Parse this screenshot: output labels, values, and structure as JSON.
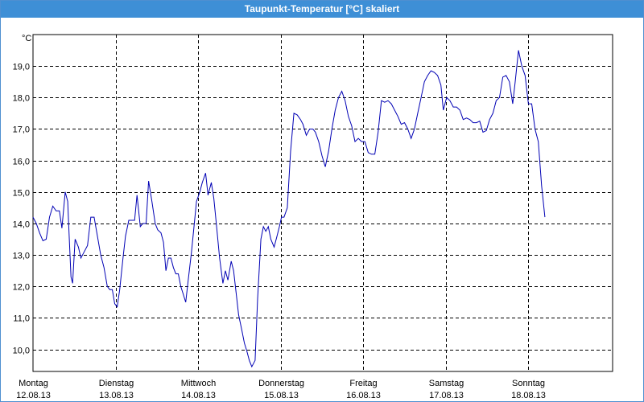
{
  "window": {
    "title": "Taupunkt-Temperatur [°C] skaliert"
  },
  "colors": {
    "titlebar": "#3e8fd6",
    "line": "#0000b4",
    "grid": "#000000"
  },
  "chart_data": {
    "type": "line",
    "title": "Taupunkt-Temperatur [°C] skaliert",
    "ylabel": "°C",
    "xlabel": "",
    "ylim": [
      9.3,
      20.0
    ],
    "y_ticks": [
      "10,0",
      "11,0",
      "12,0",
      "13,0",
      "14,0",
      "15,0",
      "16,0",
      "17,0",
      "18,0",
      "19,0"
    ],
    "y_tick_values": [
      10,
      11,
      12,
      13,
      14,
      15,
      16,
      17,
      18,
      19
    ],
    "xlim": [
      0,
      7.0
    ],
    "x_ticks": [
      {
        "x": 0,
        "day": "Montag",
        "date": "12.08.13"
      },
      {
        "x": 1,
        "day": "Dienstag",
        "date": "13.08.13"
      },
      {
        "x": 2,
        "day": "Mittwoch",
        "date": "14.08.13"
      },
      {
        "x": 3,
        "day": "Donnerstag",
        "date": "15.08.13"
      },
      {
        "x": 4,
        "day": "Freitag",
        "date": "16.08.13"
      },
      {
        "x": 5,
        "day": "Samstag",
        "date": "17.08.13"
      },
      {
        "x": 6,
        "day": "Sonntag",
        "date": "18.08.13"
      }
    ],
    "grid": true,
    "series": [
      {
        "points": [
          [
            0.0,
            14.2
          ],
          [
            0.04,
            14.0
          ],
          [
            0.08,
            13.7
          ],
          [
            0.12,
            13.45
          ],
          [
            0.16,
            13.5
          ],
          [
            0.2,
            14.2
          ],
          [
            0.24,
            14.55
          ],
          [
            0.28,
            14.4
          ],
          [
            0.32,
            14.4
          ],
          [
            0.35,
            13.85
          ],
          [
            0.39,
            15.0
          ],
          [
            0.42,
            14.7
          ],
          [
            0.44,
            13.5
          ],
          [
            0.46,
            12.3
          ],
          [
            0.48,
            12.1
          ],
          [
            0.51,
            13.5
          ],
          [
            0.55,
            13.25
          ],
          [
            0.58,
            12.9
          ],
          [
            0.62,
            13.1
          ],
          [
            0.66,
            13.3
          ],
          [
            0.7,
            14.2
          ],
          [
            0.74,
            14.2
          ],
          [
            0.78,
            13.6
          ],
          [
            0.82,
            13.0
          ],
          [
            0.86,
            12.6
          ],
          [
            0.9,
            12.0
          ],
          [
            0.93,
            11.9
          ],
          [
            0.96,
            11.9
          ],
          [
            0.99,
            11.45
          ],
          [
            1.02,
            11.35
          ],
          [
            1.05,
            11.9
          ],
          [
            1.09,
            12.9
          ],
          [
            1.12,
            13.6
          ],
          [
            1.16,
            14.1
          ],
          [
            1.19,
            14.1
          ],
          [
            1.23,
            14.1
          ],
          [
            1.26,
            14.9
          ],
          [
            1.3,
            13.9
          ],
          [
            1.33,
            14.0
          ],
          [
            1.37,
            14.0
          ],
          [
            1.4,
            15.35
          ],
          [
            1.44,
            14.7
          ],
          [
            1.48,
            14.0
          ],
          [
            1.51,
            13.8
          ],
          [
            1.55,
            13.7
          ],
          [
            1.58,
            13.4
          ],
          [
            1.61,
            12.5
          ],
          [
            1.64,
            12.9
          ],
          [
            1.67,
            12.9
          ],
          [
            1.7,
            12.6
          ],
          [
            1.73,
            12.4
          ],
          [
            1.76,
            12.4
          ],
          [
            1.79,
            12.0
          ],
          [
            1.82,
            11.75
          ],
          [
            1.85,
            11.5
          ],
          [
            1.88,
            12.2
          ],
          [
            1.92,
            13.1
          ],
          [
            1.95,
            13.9
          ],
          [
            1.98,
            14.7
          ],
          [
            2.02,
            15.0
          ],
          [
            2.05,
            15.3
          ],
          [
            2.09,
            15.6
          ],
          [
            2.12,
            14.9
          ],
          [
            2.16,
            15.3
          ],
          [
            2.19,
            14.8
          ],
          [
            2.22,
            14.0
          ],
          [
            2.26,
            12.9
          ],
          [
            2.3,
            12.1
          ],
          [
            2.33,
            12.5
          ],
          [
            2.36,
            12.2
          ],
          [
            2.4,
            12.8
          ],
          [
            2.43,
            12.5
          ],
          [
            2.46,
            11.8
          ],
          [
            2.49,
            11.1
          ],
          [
            2.53,
            10.6
          ],
          [
            2.56,
            10.2
          ],
          [
            2.59,
            9.95
          ],
          [
            2.62,
            9.65
          ],
          [
            2.65,
            9.45
          ],
          [
            2.69,
            9.65
          ],
          [
            2.72,
            11.6
          ],
          [
            2.76,
            13.5
          ],
          [
            2.79,
            13.9
          ],
          [
            2.82,
            13.75
          ],
          [
            2.85,
            13.9
          ],
          [
            2.88,
            13.5
          ],
          [
            2.92,
            13.25
          ],
          [
            2.95,
            13.55
          ],
          [
            2.98,
            13.85
          ],
          [
            3.01,
            14.2
          ],
          [
            3.04,
            14.2
          ],
          [
            3.08,
            14.5
          ],
          [
            3.12,
            16.3
          ],
          [
            3.16,
            17.5
          ],
          [
            3.2,
            17.45
          ],
          [
            3.24,
            17.3
          ],
          [
            3.27,
            17.15
          ],
          [
            3.31,
            16.8
          ],
          [
            3.35,
            17.0
          ],
          [
            3.39,
            17.0
          ],
          [
            3.42,
            16.9
          ],
          [
            3.46,
            16.6
          ],
          [
            3.5,
            16.15
          ],
          [
            3.54,
            15.8
          ],
          [
            3.58,
            16.3
          ],
          [
            3.62,
            17.0
          ],
          [
            3.66,
            17.6
          ],
          [
            3.7,
            18.0
          ],
          [
            3.74,
            18.2
          ],
          [
            3.78,
            17.9
          ],
          [
            3.82,
            17.4
          ],
          [
            3.86,
            17.1
          ],
          [
            3.9,
            16.6
          ],
          [
            3.94,
            16.7
          ],
          [
            3.98,
            16.6
          ],
          [
            4.02,
            16.6
          ],
          [
            4.06,
            16.25
          ],
          [
            4.1,
            16.2
          ],
          [
            4.14,
            16.2
          ],
          [
            4.18,
            16.9
          ],
          [
            4.22,
            17.9
          ],
          [
            4.26,
            17.85
          ],
          [
            4.3,
            17.9
          ],
          [
            4.34,
            17.8
          ],
          [
            4.38,
            17.6
          ],
          [
            4.42,
            17.4
          ],
          [
            4.46,
            17.15
          ],
          [
            4.5,
            17.2
          ],
          [
            4.54,
            17.0
          ],
          [
            4.58,
            16.7
          ],
          [
            4.62,
            17.0
          ],
          [
            4.66,
            17.5
          ],
          [
            4.7,
            18.0
          ],
          [
            4.74,
            18.5
          ],
          [
            4.78,
            18.7
          ],
          [
            4.82,
            18.85
          ],
          [
            4.86,
            18.8
          ],
          [
            4.9,
            18.7
          ],
          [
            4.94,
            18.4
          ],
          [
            4.97,
            17.6
          ],
          [
            5.01,
            18.0
          ],
          [
            5.05,
            17.9
          ],
          [
            5.09,
            17.7
          ],
          [
            5.13,
            17.7
          ],
          [
            5.17,
            17.6
          ],
          [
            5.21,
            17.3
          ],
          [
            5.25,
            17.35
          ],
          [
            5.29,
            17.3
          ],
          [
            5.33,
            17.2
          ],
          [
            5.37,
            17.2
          ],
          [
            5.41,
            17.25
          ],
          [
            5.45,
            16.9
          ],
          [
            5.49,
            16.95
          ],
          [
            5.53,
            17.3
          ],
          [
            5.57,
            17.5
          ],
          [
            5.61,
            17.9
          ],
          [
            5.65,
            18.0
          ],
          [
            5.69,
            18.65
          ],
          [
            5.73,
            18.7
          ],
          [
            5.77,
            18.5
          ],
          [
            5.81,
            17.8
          ],
          [
            5.84,
            18.5
          ],
          [
            5.88,
            19.5
          ],
          [
            5.92,
            19.0
          ],
          [
            5.96,
            18.7
          ],
          [
            6.0,
            17.8
          ],
          [
            6.04,
            17.8
          ],
          [
            6.08,
            17.0
          ],
          [
            6.12,
            16.6
          ],
          [
            6.16,
            15.2
          ],
          [
            6.2,
            14.2
          ]
        ]
      }
    ]
  }
}
